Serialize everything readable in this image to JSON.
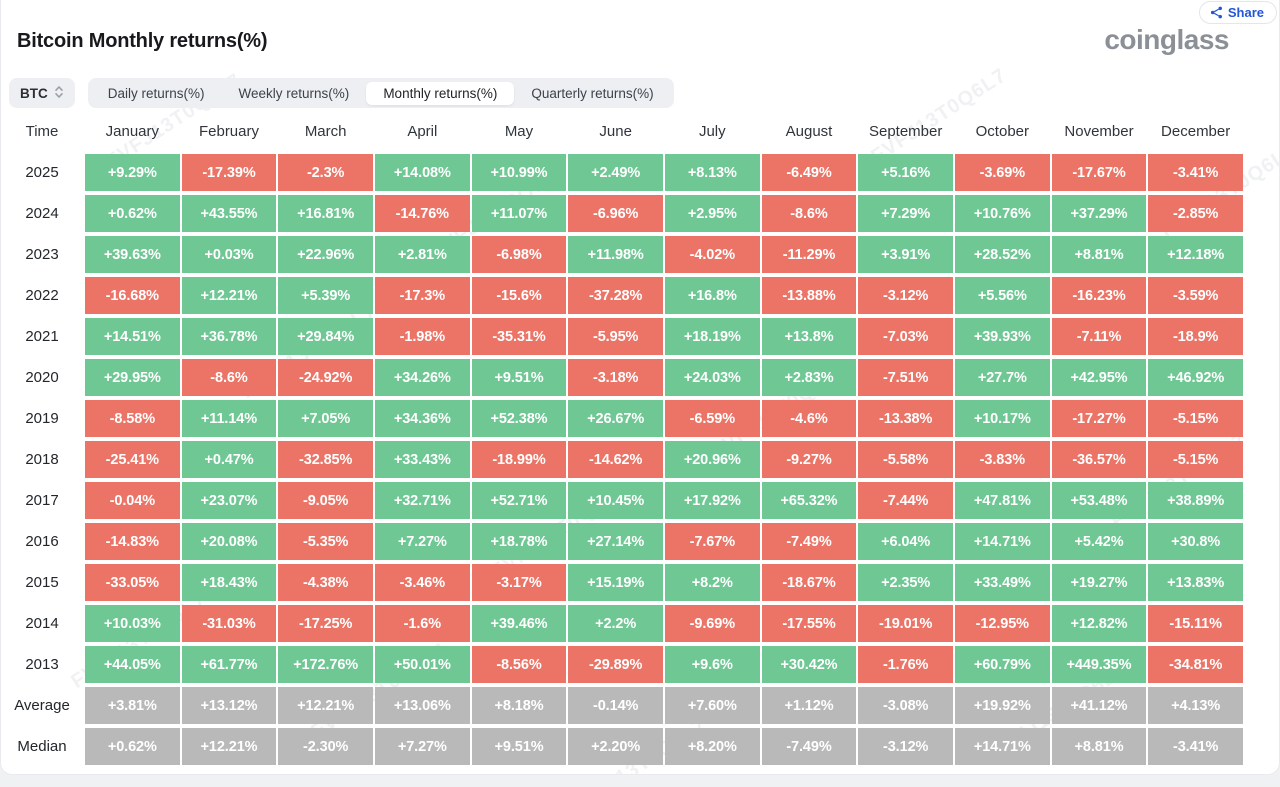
{
  "header": {
    "title": "Bitcoin Monthly returns(%)",
    "logo": "coinglass"
  },
  "share": {
    "label": "Share"
  },
  "symbol_selector": {
    "label": "BTC"
  },
  "tabs": {
    "items": [
      {
        "label": "Daily returns(%)",
        "active": false
      },
      {
        "label": "Weekly returns(%)",
        "active": false
      },
      {
        "label": "Monthly returns(%)",
        "active": true
      },
      {
        "label": "Quarterly returns(%)",
        "active": false
      }
    ]
  },
  "watermark": {
    "text": "FVFJ13T0Q6L7"
  },
  "colors": {
    "positive": "#6fc794",
    "negative": "#eb7467",
    "neutral": "#b9b9b9",
    "accent_blue": "#2456d6"
  },
  "chart_data": {
    "type": "heatmap",
    "title": "Bitcoin Monthly returns(%)",
    "columns": [
      "Time",
      "January",
      "February",
      "March",
      "April",
      "May",
      "June",
      "July",
      "August",
      "September",
      "October",
      "November",
      "December"
    ],
    "rows": [
      {
        "label": "2025",
        "type": "year",
        "values": [
          "+9.29%",
          "-17.39%",
          "-2.3%",
          "+14.08%",
          "+10.99%",
          "+2.49%",
          "+8.13%",
          "-6.49%",
          "+5.16%",
          "-3.69%",
          "-17.67%",
          "-3.41%"
        ]
      },
      {
        "label": "2024",
        "type": "year",
        "values": [
          "+0.62%",
          "+43.55%",
          "+16.81%",
          "-14.76%",
          "+11.07%",
          "-6.96%",
          "+2.95%",
          "-8.6%",
          "+7.29%",
          "+10.76%",
          "+37.29%",
          "-2.85%"
        ]
      },
      {
        "label": "2023",
        "type": "year",
        "values": [
          "+39.63%",
          "+0.03%",
          "+22.96%",
          "+2.81%",
          "-6.98%",
          "+11.98%",
          "-4.02%",
          "-11.29%",
          "+3.91%",
          "+28.52%",
          "+8.81%",
          "+12.18%"
        ]
      },
      {
        "label": "2022",
        "type": "year",
        "values": [
          "-16.68%",
          "+12.21%",
          "+5.39%",
          "-17.3%",
          "-15.6%",
          "-37.28%",
          "+16.8%",
          "-13.88%",
          "-3.12%",
          "+5.56%",
          "-16.23%",
          "-3.59%"
        ]
      },
      {
        "label": "2021",
        "type": "year",
        "values": [
          "+14.51%",
          "+36.78%",
          "+29.84%",
          "-1.98%",
          "-35.31%",
          "-5.95%",
          "+18.19%",
          "+13.8%",
          "-7.03%",
          "+39.93%",
          "-7.11%",
          "-18.9%"
        ]
      },
      {
        "label": "2020",
        "type": "year",
        "values": [
          "+29.95%",
          "-8.6%",
          "-24.92%",
          "+34.26%",
          "+9.51%",
          "-3.18%",
          "+24.03%",
          "+2.83%",
          "-7.51%",
          "+27.7%",
          "+42.95%",
          "+46.92%"
        ]
      },
      {
        "label": "2019",
        "type": "year",
        "values": [
          "-8.58%",
          "+11.14%",
          "+7.05%",
          "+34.36%",
          "+52.38%",
          "+26.67%",
          "-6.59%",
          "-4.6%",
          "-13.38%",
          "+10.17%",
          "-17.27%",
          "-5.15%"
        ]
      },
      {
        "label": "2018",
        "type": "year",
        "values": [
          "-25.41%",
          "+0.47%",
          "-32.85%",
          "+33.43%",
          "-18.99%",
          "-14.62%",
          "+20.96%",
          "-9.27%",
          "-5.58%",
          "-3.83%",
          "-36.57%",
          "-5.15%"
        ]
      },
      {
        "label": "2017",
        "type": "year",
        "values": [
          "-0.04%",
          "+23.07%",
          "-9.05%",
          "+32.71%",
          "+52.71%",
          "+10.45%",
          "+17.92%",
          "+65.32%",
          "-7.44%",
          "+47.81%",
          "+53.48%",
          "+38.89%"
        ]
      },
      {
        "label": "2016",
        "type": "year",
        "values": [
          "-14.83%",
          "+20.08%",
          "-5.35%",
          "+7.27%",
          "+18.78%",
          "+27.14%",
          "-7.67%",
          "-7.49%",
          "+6.04%",
          "+14.71%",
          "+5.42%",
          "+30.8%"
        ]
      },
      {
        "label": "2015",
        "type": "year",
        "values": [
          "-33.05%",
          "+18.43%",
          "-4.38%",
          "-3.46%",
          "-3.17%",
          "+15.19%",
          "+8.2%",
          "-18.67%",
          "+2.35%",
          "+33.49%",
          "+19.27%",
          "+13.83%"
        ]
      },
      {
        "label": "2014",
        "type": "year",
        "values": [
          "+10.03%",
          "-31.03%",
          "-17.25%",
          "-1.6%",
          "+39.46%",
          "+2.2%",
          "-9.69%",
          "-17.55%",
          "-19.01%",
          "-12.95%",
          "+12.82%",
          "-15.11%"
        ]
      },
      {
        "label": "2013",
        "type": "year",
        "values": [
          "+44.05%",
          "+61.77%",
          "+172.76%",
          "+50.01%",
          "-8.56%",
          "-29.89%",
          "+9.6%",
          "+30.42%",
          "-1.76%",
          "+60.79%",
          "+449.35%",
          "-34.81%"
        ]
      },
      {
        "label": "Average",
        "type": "summary",
        "values": [
          "+3.81%",
          "+13.12%",
          "+12.21%",
          "+13.06%",
          "+8.18%",
          "-0.14%",
          "+7.60%",
          "+1.12%",
          "-3.08%",
          "+19.92%",
          "+41.12%",
          "+4.13%"
        ]
      },
      {
        "label": "Median",
        "type": "summary",
        "values": [
          "+0.62%",
          "+12.21%",
          "-2.30%",
          "+7.27%",
          "+9.51%",
          "+2.20%",
          "+8.20%",
          "-7.49%",
          "-3.12%",
          "+14.71%",
          "+8.81%",
          "-3.41%"
        ]
      }
    ],
    "legend": "green = positive month, red = negative month, gray = summary rows",
    "grid": false
  }
}
